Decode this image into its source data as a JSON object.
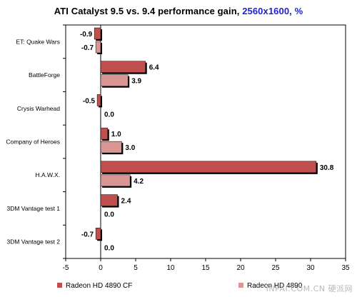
{
  "chart_data": {
    "type": "bar",
    "orientation": "horizontal",
    "title": "ATI Catalyst 9.5 vs. 9.4 performance gain,",
    "title_accent": "2560x1600, %",
    "categories": [
      "ET: Quake Wars",
      "BattleForge",
      "Crysis Warhead",
      "Company of Heroes",
      "H.A.W.X.",
      "3DM Vantage test 1",
      "3DM Vantage test 2"
    ],
    "series": [
      {
        "name": "Radeon HD 4890 CF",
        "color": "#c0504d",
        "values": [
          -0.9,
          6.4,
          -0.5,
          1.0,
          30.8,
          2.4,
          -0.7
        ]
      },
      {
        "name": "Radeon HD 4890",
        "color": "#d99694",
        "values": [
          -0.7,
          3.9,
          0.0,
          3.0,
          4.2,
          0.0,
          0.0
        ]
      }
    ],
    "value_labels": [
      [
        "-0.9",
        "6.4",
        "-0.5",
        "1.0",
        "30.8",
        "2.4",
        "-0.7"
      ],
      [
        "-0.7",
        "3.9",
        "0.0",
        "3.0",
        "4.2",
        "0.0",
        "0.0"
      ]
    ],
    "xlim": [
      -5,
      35
    ],
    "xticks": [
      -5,
      0,
      5,
      10,
      15,
      20,
      25,
      30,
      35
    ],
    "xtick_labels": [
      "-5",
      "0",
      "5",
      "10",
      "15",
      "20",
      "25",
      "30",
      "35"
    ],
    "grid": false,
    "legend_position": "bottom"
  },
  "watermark": "INPAI.COM.CN 硬派网"
}
